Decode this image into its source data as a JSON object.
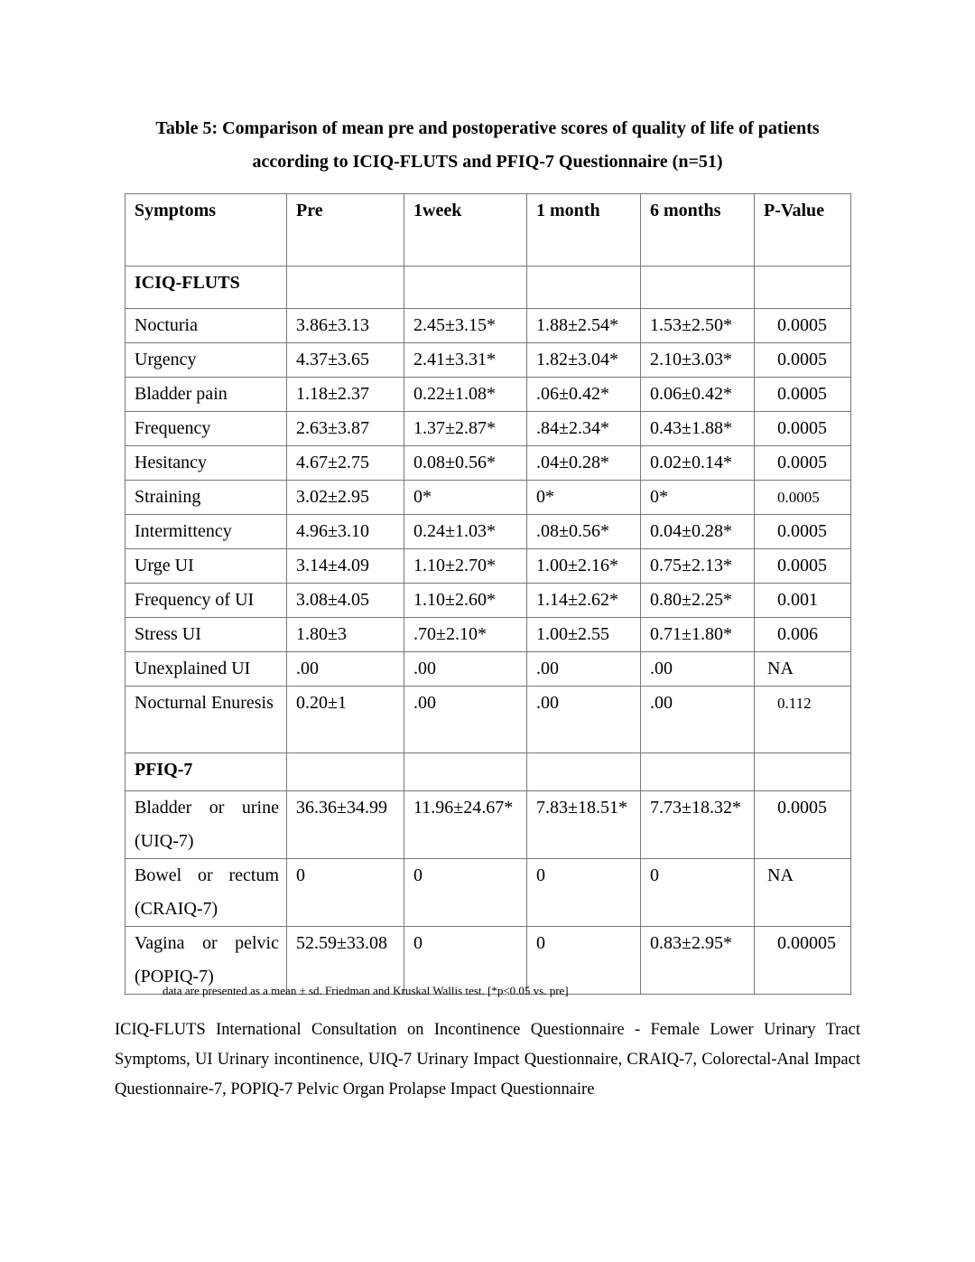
{
  "title_line1": "Table 5: Comparison of mean pre and postoperative scores of quality of life of patients",
  "title_line2": "according to ICIQ-FLUTS and PFIQ-7 Questionnaire (n=51)",
  "headers": [
    "Symptoms",
    "Pre",
    "1week",
    "1 month",
    "6 months",
    "P-Value"
  ],
  "sections": [
    {
      "label": "ICIQ-FLUTS",
      "rows": [
        [
          "Nocturia",
          "3.86±3.13",
          "2.45±3.15*",
          "1.88±2.54*",
          "1.53±2.50*",
          "0.0005"
        ],
        [
          "Urgency",
          "4.37±3.65",
          "2.41±3.31*",
          "1.82±3.04*",
          "2.10±3.03*",
          "0.0005"
        ],
        [
          "Bladder pain",
          "1.18±2.37",
          "0.22±1.08*",
          ".06±0.42*",
          "0.06±0.42*",
          "0.0005"
        ],
        [
          "Frequency",
          "2.63±3.87",
          "1.37±2.87*",
          ".84±2.34*",
          "0.43±1.88*",
          "0.0005"
        ],
        [
          "Hesitancy",
          "4.67±2.75",
          "0.08±0.56*",
          ".04±0.28*",
          "0.02±0.14*",
          "0.0005"
        ],
        [
          "Straining",
          "3.02±2.95",
          "0*",
          "0*",
          "0*",
          "0.0005"
        ],
        [
          "Intermittency",
          "4.96±3.10",
          "0.24±1.03*",
          ".08±0.56*",
          "0.04±0.28*",
          "0.0005"
        ],
        [
          "Urge UI",
          "3.14±4.09",
          "1.10±2.70*",
          "1.00±2.16*",
          "0.75±2.13*",
          "0.0005"
        ],
        [
          "Frequency of UI",
          "3.08±4.05",
          "1.10±2.60*",
          "1.14±2.62*",
          "0.80±2.25*",
          "0.001"
        ],
        [
          "Stress UI",
          "1.80±3",
          ".70±2.10*",
          "1.00±2.55",
          "0.71±1.80*",
          "0.006"
        ],
        [
          "Unexplained UI",
          ".00",
          ".00",
          ".00",
          ".00",
          "NA"
        ],
        [
          "Nocturnal Enuresis",
          "0.20±1",
          ".00",
          ".00",
          ".00",
          "0.112"
        ]
      ]
    },
    {
      "label": "PFIQ-7",
      "rows": [
        [
          "Bladder or urine (UIQ-7)",
          "36.36±34.99",
          "11.96±24.67*",
          "7.83±18.51*",
          "7.73±18.32*",
          "0.0005"
        ],
        [
          "Bowel or rectum (CRAIQ-7)",
          "0",
          "0",
          "0",
          "0",
          "NA"
        ],
        [
          "Vagina or pelvic (POPIQ-7)",
          "52.59±33.08",
          "0",
          "0",
          "0.83±2.95*",
          "0.00005"
        ]
      ]
    }
  ],
  "footnote": "data are presented as a mean ± sd.  Friedman and Kruskal Wallis test. [*p<0.05 vs. pre]",
  "abbreviations": "ICIQ-FLUTS International Consultation on Incontinence Questionnaire - Female Lower Urinary Tract Symptoms, UI Urinary incontinence, UIQ-7 Urinary Impact Questionnaire, CRAIQ-7, Colorectal-Anal Impact Questionnaire-7, POPIQ-7 Pelvic Organ Prolapse Impact Questionnaire"
}
